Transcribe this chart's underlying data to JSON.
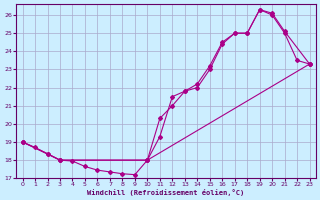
{
  "xlabel": "Windchill (Refroidissement éolien,°C)",
  "background_color": "#cceeff",
  "grid_color": "#aaaacc",
  "line_color": "#aa0088",
  "xlim": [
    -0.5,
    23.5
  ],
  "ylim": [
    17,
    26.6
  ],
  "xticks": [
    0,
    1,
    2,
    3,
    4,
    5,
    6,
    7,
    8,
    9,
    10,
    11,
    12,
    13,
    14,
    15,
    16,
    17,
    18,
    19,
    20,
    21,
    22,
    23
  ],
  "yticks": [
    17,
    18,
    19,
    20,
    21,
    22,
    23,
    24,
    25,
    26
  ],
  "series1_x": [
    0,
    1,
    2,
    3,
    4,
    5,
    6,
    7,
    8,
    9,
    10,
    11,
    12,
    13,
    14,
    15,
    16,
    17,
    18,
    19,
    20,
    21,
    22,
    23
  ],
  "series1_y": [
    19.0,
    18.7,
    18.35,
    18.0,
    17.95,
    17.65,
    17.45,
    17.35,
    17.25,
    17.2,
    18.0,
    19.3,
    21.5,
    21.8,
    22.0,
    23.0,
    24.4,
    25.0,
    25.0,
    26.3,
    26.0,
    25.0,
    23.5,
    23.3
  ],
  "series2_x": [
    0,
    2,
    3,
    10,
    11,
    12,
    13,
    14,
    15,
    16,
    17,
    18,
    19,
    20,
    21,
    23
  ],
  "series2_y": [
    19.0,
    18.35,
    18.0,
    18.0,
    20.3,
    21.0,
    21.8,
    22.2,
    23.2,
    24.5,
    25.0,
    25.0,
    26.3,
    26.1,
    25.1,
    23.3
  ],
  "series3_x": [
    0,
    3,
    10,
    23
  ],
  "series3_y": [
    19.0,
    18.0,
    18.0,
    23.3
  ]
}
